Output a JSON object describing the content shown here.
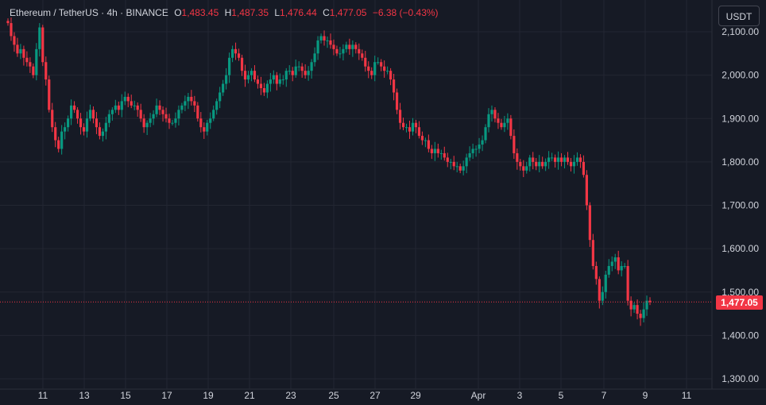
{
  "legend": {
    "symbol": "Ethereum / TetherUS · 4h · BINANCE",
    "open_label": "O",
    "open": "1,483.45",
    "high_label": "H",
    "high": "1,487.35",
    "low_label": "L",
    "low": "1,476.44",
    "close_label": "C",
    "close": "1,477.05",
    "change": "−6.38 (−0.43%)"
  },
  "currency_button": "USDT",
  "last_price_label": "1,477.05",
  "colors": {
    "background": "#161a25",
    "grid": "#232632",
    "up": "#089981",
    "down": "#f23645",
    "text": "#d1d4dc"
  },
  "chart_data": {
    "type": "candlestick",
    "interval": "4h",
    "y_ticks": [
      "1,300.00",
      "1,400.00",
      "1,500.00",
      "1,600.00",
      "1,700.00",
      "1,800.00",
      "1,900.00",
      "2,000.00",
      "2,100.00"
    ],
    "y_tick_values": [
      1300,
      1400,
      1500,
      1600,
      1700,
      1800,
      1900,
      2000,
      2100
    ],
    "x_ticks": [
      "11",
      "13",
      "15",
      "17",
      "19",
      "21",
      "23",
      "25",
      "27",
      "29",
      "Apr",
      "3",
      "5",
      "7",
      "9",
      "11"
    ],
    "ylim": [
      1280,
      2120
    ],
    "last_price": 1477.05,
    "series_approx_close": [
      2120,
      2090,
      2070,
      2050,
      2060,
      2040,
      2030,
      2020,
      2000,
      2060,
      2110,
      2030,
      1990,
      1920,
      1880,
      1850,
      1830,
      1870,
      1880,
      1900,
      1930,
      1920,
      1900,
      1880,
      1870,
      1900,
      1920,
      1900,
      1880,
      1860,
      1870,
      1890,
      1910,
      1920,
      1930,
      1920,
      1940,
      1950,
      1940,
      1930,
      1930,
      1920,
      1900,
      1880,
      1890,
      1900,
      1910,
      1930,
      1920,
      1910,
      1900,
      1890,
      1890,
      1900,
      1920,
      1930,
      1940,
      1950,
      1940,
      1930,
      1900,
      1880,
      1870,
      1890,
      1900,
      1920,
      1940,
      1960,
      1980,
      2000,
      2040,
      2060,
      2050,
      2040,
      2010,
      1990,
      2000,
      2010,
      1990,
      1980,
      1970,
      1960,
      1980,
      1990,
      2000,
      1980,
      1990,
      1990,
      2010,
      2010,
      2000,
      2020,
      2020,
      2010,
      2000,
      2010,
      2030,
      2050,
      2080,
      2090,
      2080,
      2080,
      2070,
      2060,
      2050,
      2050,
      2060,
      2070,
      2060,
      2070,
      2060,
      2050,
      2040,
      2020,
      2010,
      2000,
      2030,
      2030,
      2020,
      2010,
      2010,
      1990,
      1960,
      1920,
      1890,
      1880,
      1880,
      1870,
      1890,
      1880,
      1860,
      1850,
      1850,
      1830,
      1820,
      1830,
      1820,
      1820,
      1810,
      1800,
      1800,
      1790,
      1790,
      1780,
      1790,
      1810,
      1820,
      1830,
      1830,
      1840,
      1850,
      1880,
      1910,
      1920,
      1900,
      1890,
      1880,
      1890,
      1900,
      1860,
      1820,
      1800,
      1790,
      1780,
      1790,
      1810,
      1800,
      1790,
      1800,
      1790,
      1800,
      1810,
      1810,
      1800,
      1810,
      1800,
      1810,
      1800,
      1790,
      1800,
      1810,
      1800,
      1770,
      1700,
      1620,
      1560,
      1530,
      1480,
      1500,
      1540,
      1560,
      1570,
      1580,
      1550,
      1560,
      1560,
      1480,
      1460,
      1470,
      1450,
      1440,
      1460,
      1480,
      1477
    ]
  }
}
